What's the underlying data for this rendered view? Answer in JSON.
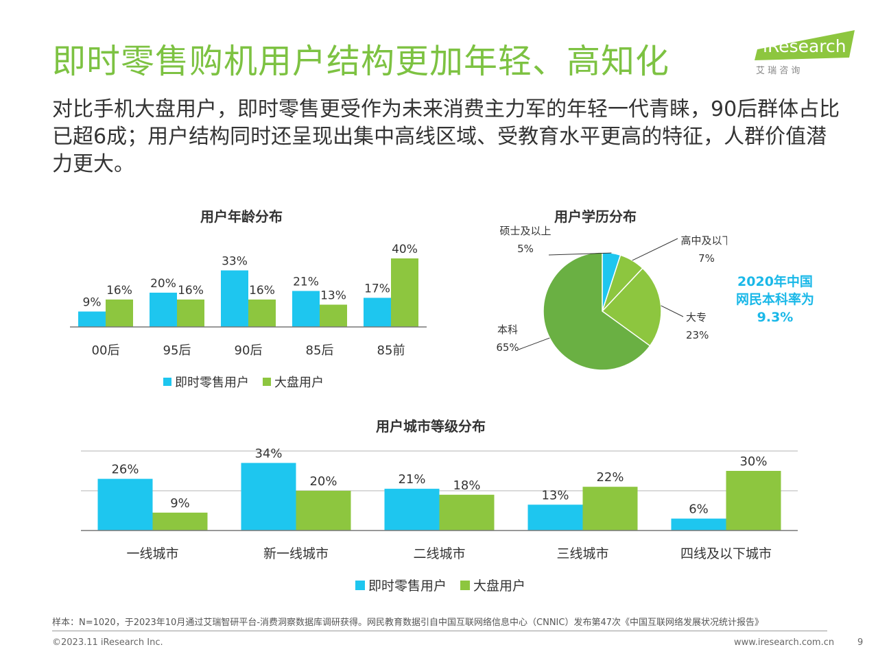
{
  "page": {
    "title": "即时零售购机用户结构更加年轻、高知化",
    "subtitle": "对比手机大盘用户，即时零售更受作为未来消费主力军的年轻一代青睐，90后群体占比已超6成；用户结构同时还呈现出集中高线区域、受教育水平更高的特征，人群价值潜力更大。",
    "logo_text": "iResearch",
    "logo_sub": "艾 瑞 咨 询",
    "footnote": "样本：N=1020，于2023年10月通过艾瑞智研平台-消费洞察数据库调研获得。网民教育数据引自中国互联网络信息中心（CNNIC）发布第47次《中国互联网络发展状况统计报告》",
    "copyright": "©2023.11 iResearch Inc.",
    "website": "www.iresearch.com.cn",
    "page_number": "9",
    "callout": [
      "2020年中国",
      "网民本科率为",
      "9.3%"
    ]
  },
  "colors": {
    "blue": "#1ec6ef",
    "green": "#8dc63f",
    "title_green": "#7dc242",
    "pie_main": "#6ab043",
    "pie_light": "#8dc63f"
  },
  "chart_data": [
    {
      "type": "bar",
      "title": "用户年龄分布",
      "categories": [
        "00后",
        "95后",
        "90后",
        "85后",
        "85前"
      ],
      "series": [
        {
          "name": "即时零售用户",
          "values": [
            9,
            20,
            33,
            21,
            17
          ]
        },
        {
          "name": "大盘用户",
          "values": [
            16,
            16,
            16,
            13,
            40
          ]
        }
      ],
      "value_labels": [
        [
          "9%",
          "20%",
          "33%",
          "21%",
          "17%"
        ],
        [
          "16%",
          "16%",
          "16%",
          "13%",
          "40%"
        ]
      ],
      "ylim": [
        0,
        40
      ],
      "legend": "bottom"
    },
    {
      "type": "pie",
      "title": "用户学历分布",
      "labels": [
        "硕士及以上",
        "高中及以下",
        "大专",
        "本科"
      ],
      "values": [
        5,
        7,
        23,
        65
      ],
      "value_labels": [
        "5%",
        "7%",
        "23%",
        "65%"
      ]
    },
    {
      "type": "bar",
      "title": "用户城市等级分布",
      "categories": [
        "一线城市",
        "新一线城市",
        "二线城市",
        "三线城市",
        "四线及以下城市"
      ],
      "series": [
        {
          "name": "即时零售用户",
          "values": [
            26,
            34,
            21,
            13,
            6
          ]
        },
        {
          "name": "大盘用户",
          "values": [
            9,
            20,
            18,
            22,
            30
          ]
        }
      ],
      "value_labels": [
        [
          "26%",
          "34%",
          "21%",
          "13%",
          "6%"
        ],
        [
          "9%",
          "20%",
          "18%",
          "22%",
          "30%"
        ]
      ],
      "ylim": [
        0,
        40
      ],
      "grid": true,
      "legend": "bottom"
    }
  ]
}
